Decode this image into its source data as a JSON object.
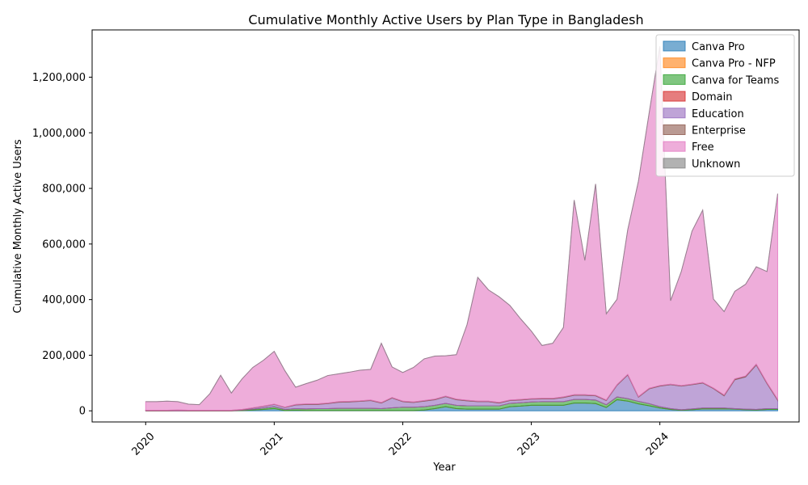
{
  "chart_data": {
    "type": "area",
    "stacked": true,
    "title": "Cumulative Monthly Active Users by Plan Type in Bangladesh",
    "xlabel": "Year",
    "ylabel": "Cumulative Monthly Active Users",
    "x_ticks": [
      "2020",
      "2021",
      "2022",
      "2023",
      "2024"
    ],
    "y_ticks": [
      "0",
      "200,000",
      "400,000",
      "600,000",
      "800,000",
      "1,000,000",
      "1,200,000"
    ],
    "ylim": [
      -40000,
      1370000
    ],
    "xlim_months": [
      "2019-08",
      "2025-02"
    ],
    "legend_position": "upper right",
    "grid": false,
    "months": [
      "2020-01",
      "2020-02",
      "2020-03",
      "2020-04",
      "2020-05",
      "2020-06",
      "2020-07",
      "2020-08",
      "2020-09",
      "2020-10",
      "2020-11",
      "2020-12",
      "2021-01",
      "2021-02",
      "2021-03",
      "2021-04",
      "2021-05",
      "2021-06",
      "2021-07",
      "2021-08",
      "2021-09",
      "2021-10",
      "2021-11",
      "2021-12",
      "2022-01",
      "2022-02",
      "2022-03",
      "2022-04",
      "2022-05",
      "2022-06",
      "2022-07",
      "2022-08",
      "2022-09",
      "2022-10",
      "2022-11",
      "2022-12",
      "2023-01",
      "2023-02",
      "2023-03",
      "2023-04",
      "2023-05",
      "2023-06",
      "2023-07",
      "2023-08",
      "2023-09",
      "2023-10",
      "2023-11",
      "2023-12",
      "2024-01",
      "2024-02",
      "2024-03",
      "2024-04",
      "2024-05",
      "2024-06",
      "2024-07",
      "2024-08",
      "2024-09",
      "2024-10",
      "2024-11",
      "2024-12"
    ],
    "series": [
      {
        "name": "Canva Pro",
        "color": "#1f77b4",
        "values": [
          0,
          0,
          0,
          0,
          0,
          0,
          0,
          0,
          0,
          1000,
          3000,
          5000,
          8000,
          1000,
          2000,
          1000,
          1000,
          1000,
          1000,
          1000,
          1000,
          1000,
          1000,
          1000,
          1000,
          1000,
          3000,
          8000,
          15000,
          8000,
          6000,
          6000,
          6000,
          6000,
          15000,
          17000,
          20000,
          20000,
          20000,
          20000,
          28000,
          28000,
          26000,
          12000,
          40000,
          35000,
          25000,
          18000,
          10000,
          5000,
          2000,
          4000,
          7000,
          7000,
          7000,
          6000,
          4000,
          3000,
          5000,
          5000
        ]
      },
      {
        "name": "Canva Pro - NFP",
        "color": "#ff7f0e",
        "values": [
          0,
          0,
          0,
          0,
          0,
          0,
          0,
          0,
          0,
          0,
          0,
          0,
          0,
          0,
          0,
          0,
          0,
          0,
          0,
          0,
          0,
          0,
          0,
          0,
          0,
          0,
          0,
          0,
          0,
          0,
          0,
          0,
          0,
          0,
          0,
          0,
          0,
          0,
          0,
          0,
          0,
          0,
          0,
          0,
          0,
          0,
          0,
          0,
          0,
          0,
          0,
          0,
          0,
          0,
          0,
          0,
          0,
          0,
          0,
          0
        ]
      },
      {
        "name": "Canva for Teams",
        "color": "#2ca02c",
        "values": [
          0,
          0,
          0,
          0,
          0,
          0,
          0,
          0,
          0,
          2000,
          3000,
          5000,
          7000,
          4000,
          6000,
          6000,
          7000,
          7000,
          8000,
          8000,
          8000,
          8000,
          7000,
          10000,
          12000,
          12000,
          12000,
          12000,
          12000,
          12000,
          12000,
          12000,
          12000,
          12000,
          12000,
          12000,
          12000,
          13000,
          13000,
          13000,
          13000,
          13000,
          13000,
          10000,
          10000,
          9000,
          9000,
          8000,
          5000,
          3000,
          2000,
          3000,
          3000,
          3000,
          3000,
          2000,
          2000,
          2000,
          3000,
          3000
        ]
      },
      {
        "name": "Domain",
        "color": "#d62728",
        "values": [
          0,
          0,
          0,
          0,
          0,
          0,
          0,
          0,
          0,
          0,
          0,
          0,
          0,
          0,
          0,
          0,
          0,
          0,
          0,
          0,
          0,
          0,
          0,
          0,
          0,
          0,
          0,
          0,
          0,
          0,
          0,
          0,
          0,
          0,
          0,
          0,
          0,
          0,
          0,
          0,
          0,
          0,
          0,
          0,
          0,
          0,
          0,
          0,
          0,
          0,
          0,
          0,
          0,
          0,
          0,
          0,
          0,
          0,
          0,
          0
        ]
      },
      {
        "name": "Education",
        "color": "#9467bd",
        "values": [
          1000,
          1000,
          1000,
          2000,
          1000,
          1000,
          1000,
          1000,
          1000,
          1000,
          4000,
          6000,
          8000,
          7000,
          13000,
          16000,
          15000,
          18000,
          22000,
          23000,
          25000,
          28000,
          20000,
          35000,
          20000,
          17000,
          20000,
          20000,
          24000,
          20000,
          18000,
          15000,
          15000,
          10000,
          10000,
          10000,
          10000,
          10000,
          10000,
          15000,
          15000,
          15000,
          15000,
          15000,
          42000,
          85000,
          15000,
          53000,
          74000,
          86000,
          85000,
          87000,
          90000,
          70000,
          44000,
          104000,
          116000,
          160000,
          90000,
          30000
        ]
      },
      {
        "name": "Enterprise",
        "color": "#8c564b",
        "values": [
          1000,
          1000,
          1000,
          1000,
          1000,
          1000,
          1000,
          1000,
          1000,
          1000,
          1000,
          1000,
          1000,
          1000,
          2000,
          2000,
          2000,
          2000,
          2000,
          2000,
          2000,
          2000,
          2000,
          2000,
          2000,
          2000,
          2000,
          2000,
          2000,
          2000,
          2000,
          2000,
          2000,
          2000,
          2000,
          2000,
          2000,
          2000,
          2000,
          2000,
          2000,
          2000,
          2000,
          2000,
          2000,
          2000,
          2000,
          2000,
          2000,
          2000,
          2000,
          2000,
          2000,
          2000,
          3000,
          3000,
          3000,
          3000,
          3000,
          3000
        ]
      },
      {
        "name": "Free",
        "color": "#e377c2",
        "values": [
          31000,
          31000,
          33000,
          30000,
          22000,
          20000,
          60000,
          126000,
          62000,
          110000,
          145000,
          165000,
          190000,
          131000,
          62000,
          73000,
          85000,
          99000,
          100000,
          105000,
          110000,
          110000,
          213000,
          110000,
          103000,
          124000,
          150000,
          155000,
          145000,
          160000,
          272000,
          445000,
          400000,
          380000,
          340000,
          290000,
          243000,
          190000,
          198000,
          250000,
          700000,
          483000,
          760000,
          310000,
          307000,
          520000,
          775000,
          990000,
          1220000,
          300000,
          410000,
          550000,
          620000,
          320000,
          300000,
          315000,
          330000,
          350000,
          400000,
          740000
        ]
      },
      {
        "name": "Unknown",
        "color": "#7f7f7f",
        "values": [
          0,
          0,
          0,
          0,
          0,
          0,
          0,
          0,
          0,
          0,
          0,
          0,
          0,
          0,
          0,
          0,
          0,
          0,
          0,
          0,
          0,
          0,
          0,
          0,
          0,
          0,
          0,
          0,
          0,
          0,
          0,
          0,
          0,
          0,
          0,
          0,
          0,
          0,
          0,
          0,
          0,
          0,
          0,
          0,
          0,
          0,
          0,
          0,
          0,
          0,
          0,
          0,
          0,
          0,
          0,
          0,
          0,
          0,
          0,
          0
        ]
      }
    ]
  }
}
